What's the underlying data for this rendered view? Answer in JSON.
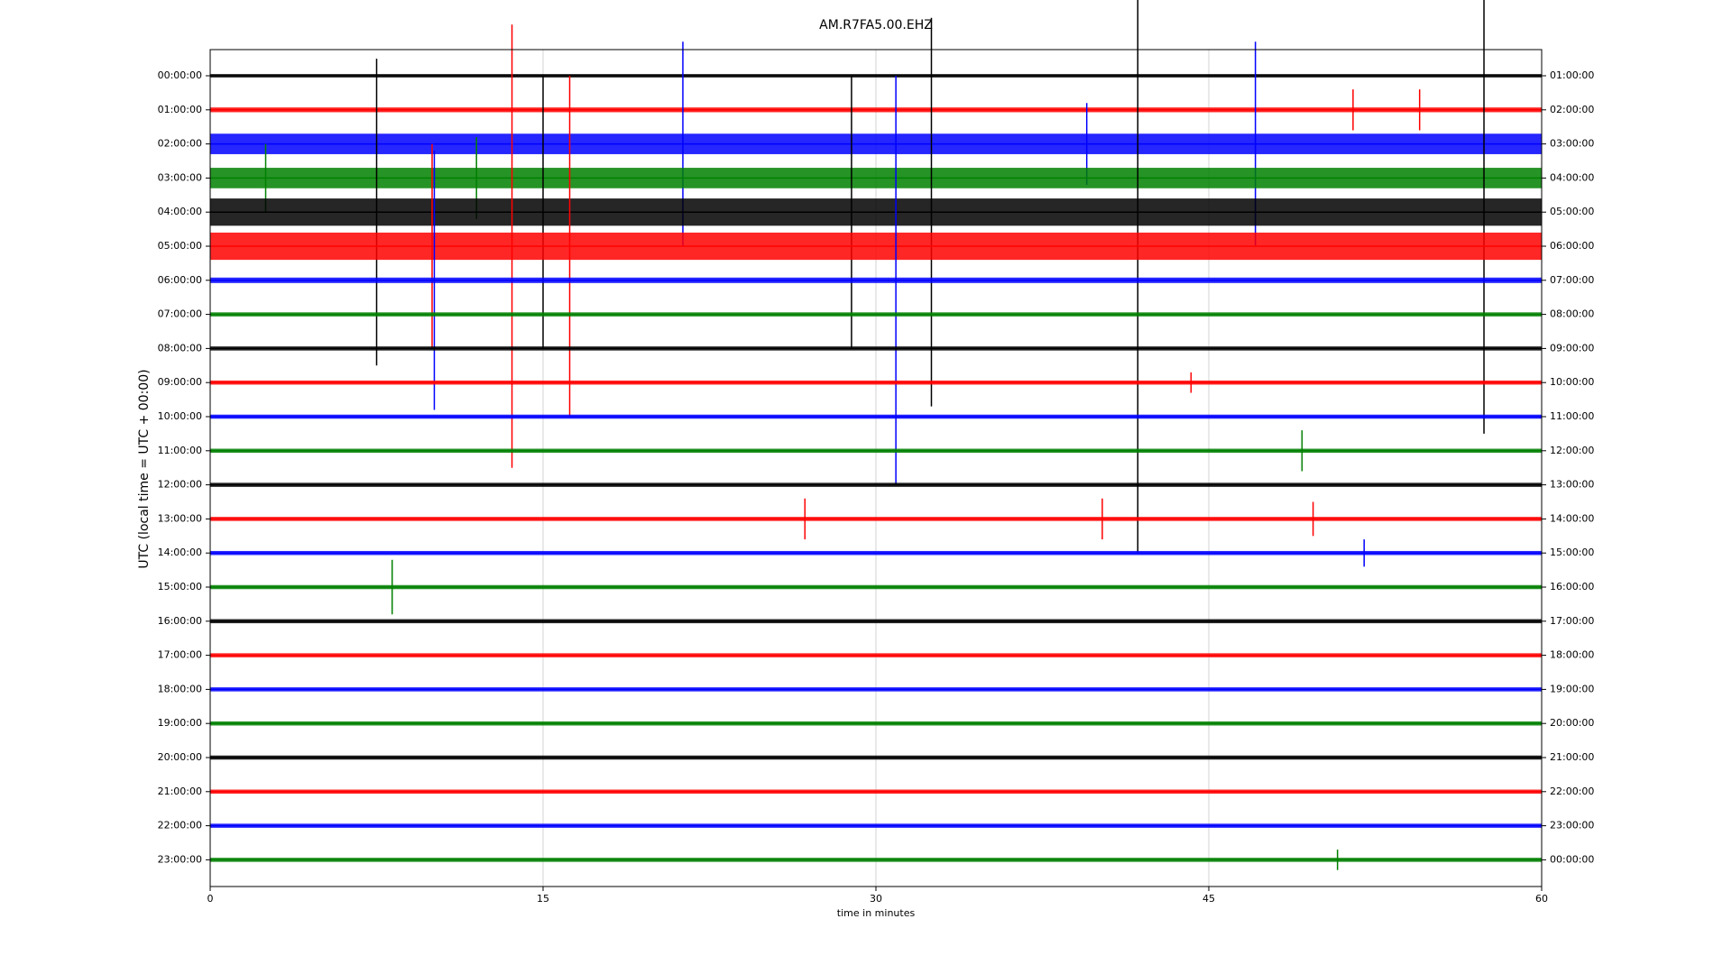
{
  "chart_data": {
    "type": "dayplot",
    "title": "AM.R7FA5.00.EHZ",
    "xlabel": "time in minutes",
    "ylabel": "UTC (local time = UTC + 00:00)",
    "xlim": [
      0,
      60
    ],
    "xticks": [
      0,
      15,
      30,
      45,
      60
    ],
    "grid": true,
    "rows": [
      {
        "label": "00:00:00",
        "right_label": "01:00:00",
        "color": "#000000",
        "noise": 0.05,
        "events": []
      },
      {
        "label": "01:00:00",
        "right_label": "02:00:00",
        "color": "#ff0000",
        "noise": 0.07,
        "events": [
          {
            "t": 51.5,
            "amp": 0.6
          },
          {
            "t": 54.5,
            "amp": 0.6
          }
        ]
      },
      {
        "label": "02:00:00",
        "right_label": "03:00:00",
        "color": "#0000ff",
        "noise": 0.3,
        "events": [
          {
            "t": 21.3,
            "amp": 3
          },
          {
            "t": 47.1,
            "amp": 3
          },
          {
            "t": 39.5,
            "amp": 1.2
          }
        ]
      },
      {
        "label": "03:00:00",
        "right_label": "04:00:00",
        "color": "#008000",
        "noise": 0.3,
        "events": [
          {
            "t": 2.5,
            "amp": 1
          },
          {
            "t": 12,
            "amp": 1.2
          }
        ]
      },
      {
        "label": "04:00:00",
        "right_label": "05:00:00",
        "color": "#000000",
        "noise": 0.4,
        "events": [
          {
            "t": 7.5,
            "amp": 4.5
          },
          {
            "t": 15,
            "amp": 4
          },
          {
            "t": 32.5,
            "amp": 5.7
          },
          {
            "t": 41.8,
            "amp": 10
          },
          {
            "t": 57.4,
            "amp": 6.5
          },
          {
            "t": 28.9,
            "amp": 4
          }
        ]
      },
      {
        "label": "05:00:00",
        "right_label": "06:00:00",
        "color": "#ff0000",
        "noise": 0.4,
        "events": [
          {
            "t": 10,
            "amp": 3
          },
          {
            "t": 13.6,
            "amp": 6.5
          },
          {
            "t": 16.2,
            "amp": 5
          }
        ]
      },
      {
        "label": "06:00:00",
        "right_label": "07:00:00",
        "color": "#0000ff",
        "noise": 0.08,
        "events": [
          {
            "t": 10.1,
            "amp": 3.8
          },
          {
            "t": 30.9,
            "amp": 6
          }
        ]
      },
      {
        "label": "07:00:00",
        "right_label": "08:00:00",
        "color": "#008000",
        "noise": 0.06,
        "events": []
      },
      {
        "label": "08:00:00",
        "right_label": "09:00:00",
        "color": "#000000",
        "noise": 0.06,
        "events": []
      },
      {
        "label": "09:00:00",
        "right_label": "10:00:00",
        "color": "#ff0000",
        "noise": 0.06,
        "events": [
          {
            "t": 44.2,
            "amp": 0.3
          }
        ]
      },
      {
        "label": "10:00:00",
        "right_label": "11:00:00",
        "color": "#0000ff",
        "noise": 0.06,
        "events": []
      },
      {
        "label": "11:00:00",
        "right_label": "12:00:00",
        "color": "#008000",
        "noise": 0.06,
        "events": [
          {
            "t": 49.2,
            "amp": 0.6
          }
        ]
      },
      {
        "label": "12:00:00",
        "right_label": "13:00:00",
        "color": "#000000",
        "noise": 0.06,
        "events": []
      },
      {
        "label": "13:00:00",
        "right_label": "14:00:00",
        "color": "#ff0000",
        "noise": 0.06,
        "events": [
          {
            "t": 26.8,
            "amp": 0.6
          },
          {
            "t": 40.2,
            "amp": 0.6
          },
          {
            "t": 49.7,
            "amp": 0.5
          }
        ]
      },
      {
        "label": "14:00:00",
        "right_label": "15:00:00",
        "color": "#0000ff",
        "noise": 0.06,
        "events": [
          {
            "t": 52,
            "amp": 0.4
          }
        ]
      },
      {
        "label": "15:00:00",
        "right_label": "16:00:00",
        "color": "#008000",
        "noise": 0.06,
        "events": [
          {
            "t": 8.2,
            "amp": 0.8
          }
        ]
      },
      {
        "label": "16:00:00",
        "right_label": "17:00:00",
        "color": "#000000",
        "noise": 0.06,
        "events": []
      },
      {
        "label": "17:00:00",
        "right_label": "18:00:00",
        "color": "#ff0000",
        "noise": 0.06,
        "events": []
      },
      {
        "label": "18:00:00",
        "right_label": "19:00:00",
        "color": "#0000ff",
        "noise": 0.06,
        "events": []
      },
      {
        "label": "19:00:00",
        "right_label": "20:00:00",
        "color": "#008000",
        "noise": 0.06,
        "events": []
      },
      {
        "label": "20:00:00",
        "right_label": "21:00:00",
        "color": "#000000",
        "noise": 0.06,
        "events": []
      },
      {
        "label": "21:00:00",
        "right_label": "22:00:00",
        "color": "#ff0000",
        "noise": 0.06,
        "events": []
      },
      {
        "label": "22:00:00",
        "right_label": "23:00:00",
        "color": "#0000ff",
        "noise": 0.06,
        "events": []
      },
      {
        "label": "23:00:00",
        "right_label": "00:00:00",
        "color": "#008000",
        "noise": 0.06,
        "events": [
          {
            "t": 50.8,
            "amp": 0.3
          }
        ]
      }
    ]
  }
}
